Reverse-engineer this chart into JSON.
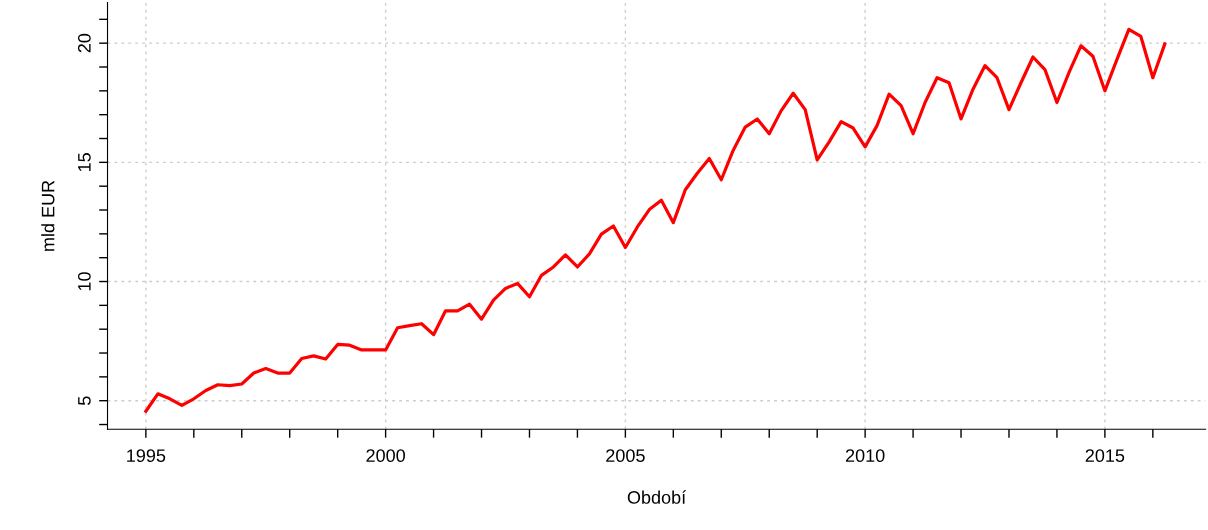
{
  "chart_data": {
    "type": "line",
    "xlabel": "Období",
    "ylabel": "mld EUR",
    "x": [
      1995.0,
      1995.25,
      1995.5,
      1995.75,
      1996.0,
      1996.25,
      1996.5,
      1996.75,
      1997.0,
      1997.25,
      1997.5,
      1997.75,
      1998.0,
      1998.25,
      1998.5,
      1998.75,
      1999.0,
      1999.25,
      1999.5,
      1999.75,
      2000.0,
      2000.25,
      2000.5,
      2000.75,
      2001.0,
      2001.25,
      2001.5,
      2001.75,
      2002.0,
      2002.25,
      2002.5,
      2002.75,
      2003.0,
      2003.25,
      2003.5,
      2003.75,
      2004.0,
      2004.25,
      2004.5,
      2004.75,
      2005.0,
      2005.25,
      2005.5,
      2005.75,
      2006.0,
      2006.25,
      2006.5,
      2006.75,
      2007.0,
      2007.25,
      2007.5,
      2007.75,
      2008.0,
      2008.25,
      2008.5,
      2008.75,
      2009.0,
      2009.25,
      2009.5,
      2009.75,
      2010.0,
      2010.25,
      2010.5,
      2010.75,
      2011.0,
      2011.25,
      2011.5,
      2011.75,
      2012.0,
      2012.25,
      2012.5,
      2012.75,
      2013.0,
      2013.25,
      2013.5,
      2013.75,
      2014.0,
      2014.25,
      2014.5,
      2014.75,
      2015.0,
      2015.25,
      2015.5,
      2015.75,
      2016.0,
      2016.25
    ],
    "series": [
      {
        "color": "#ff0000",
        "values": [
          4.56,
          5.29,
          5.08,
          4.8,
          5.08,
          5.43,
          5.67,
          5.63,
          5.7,
          6.16,
          6.35,
          6.16,
          6.16,
          6.77,
          6.88,
          6.75,
          7.36,
          7.33,
          7.13,
          7.13,
          7.13,
          8.06,
          8.15,
          8.23,
          7.77,
          8.77,
          8.77,
          9.05,
          8.42,
          9.22,
          9.71,
          9.92,
          9.36,
          10.26,
          10.61,
          11.12,
          10.61,
          11.16,
          11.99,
          12.33,
          11.43,
          12.29,
          13.02,
          13.41,
          12.47,
          13.85,
          14.54,
          15.16,
          14.27,
          15.51,
          16.48,
          16.82,
          16.2,
          17.17,
          17.9,
          17.21,
          15.1,
          15.86,
          16.71,
          16.44,
          15.65,
          16.55,
          17.86,
          17.38,
          16.2,
          17.51,
          18.55,
          18.34,
          16.82,
          18.07,
          19.06,
          18.55,
          17.21,
          18.34,
          19.42,
          18.89,
          17.51,
          18.76,
          19.89,
          19.45,
          18.0,
          19.31,
          20.58,
          20.28,
          18.55,
          19.97
        ]
      }
    ],
    "xlim": [
      1994.2,
      2017.1
    ],
    "ylim": [
      3.8,
      21.7
    ],
    "xticks": [
      1995,
      {
        "value": 1996,
        "label": null
      },
      {
        "value": 1997,
        "label": null
      },
      {
        "value": 1998,
        "label": null
      },
      {
        "value": 1999,
        "label": null
      },
      2000,
      {
        "value": 2001,
        "label": null
      },
      {
        "value": 2002,
        "label": null
      },
      {
        "value": 2003,
        "label": null
      },
      {
        "value": 2004,
        "label": null
      },
      2005,
      {
        "value": 2006,
        "label": null
      },
      {
        "value": 2007,
        "label": null
      },
      {
        "value": 2008,
        "label": null
      },
      {
        "value": 2009,
        "label": null
      },
      2010,
      {
        "value": 2011,
        "label": null
      },
      {
        "value": 2012,
        "label": null
      },
      {
        "value": 2013,
        "label": null
      },
      {
        "value": 2014,
        "label": null
      },
      2015,
      {
        "value": 2016,
        "label": null
      }
    ],
    "yticks": [
      {
        "value": 4,
        "label": null
      },
      5,
      {
        "value": 6,
        "label": null
      },
      {
        "value": 7,
        "label": null
      },
      {
        "value": 8,
        "label": null
      },
      {
        "value": 9,
        "label": null
      },
      10,
      {
        "value": 11,
        "label": null
      },
      {
        "value": 12,
        "label": null
      },
      {
        "value": 13,
        "label": null
      },
      {
        "value": 14,
        "label": null
      },
      15,
      {
        "value": 16,
        "label": null
      },
      {
        "value": 17,
        "label": null
      },
      {
        "value": 18,
        "label": null
      },
      {
        "value": 19,
        "label": null
      },
      20,
      {
        "value": 21,
        "label": null
      }
    ],
    "grid": true,
    "marker": "none",
    "line_style": "solid"
  }
}
